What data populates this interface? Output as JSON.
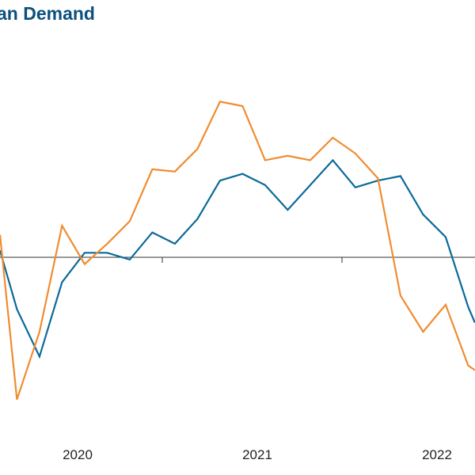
{
  "chart_data": {
    "type": "line",
    "title": "an Demand",
    "x_tick_labels": [
      "2020",
      "2021",
      "2022"
    ],
    "xlim": [
      0,
      21.05
    ],
    "ylim": [
      -0.6,
      0.6
    ],
    "zero_line": 0,
    "grid": false,
    "legend": "none",
    "series": [
      {
        "color": "#0b6a9a",
        "values": [
          {
            "x": 0.0,
            "y": 0.03
          },
          {
            "x": 0.75,
            "y": -0.23
          },
          {
            "x": 1.75,
            "y": -0.44
          },
          {
            "x": 2.75,
            "y": -0.11
          },
          {
            "x": 3.75,
            "y": 0.02
          },
          {
            "x": 4.75,
            "y": 0.02
          },
          {
            "x": 5.75,
            "y": -0.01
          },
          {
            "x": 6.75,
            "y": 0.11
          },
          {
            "x": 7.75,
            "y": 0.06
          },
          {
            "x": 8.75,
            "y": 0.17
          },
          {
            "x": 9.75,
            "y": 0.34
          },
          {
            "x": 10.75,
            "y": 0.37
          },
          {
            "x": 11.75,
            "y": 0.32
          },
          {
            "x": 12.75,
            "y": 0.21
          },
          {
            "x": 13.75,
            "y": 0.32
          },
          {
            "x": 14.75,
            "y": 0.43
          },
          {
            "x": 15.75,
            "y": 0.31
          },
          {
            "x": 16.75,
            "y": 0.34
          },
          {
            "x": 17.75,
            "y": 0.36
          },
          {
            "x": 18.75,
            "y": 0.19
          },
          {
            "x": 19.75,
            "y": 0.09
          },
          {
            "x": 20.75,
            "y": -0.22
          },
          {
            "x": 21.05,
            "y": -0.29
          }
        ]
      },
      {
        "color": "#f08c30",
        "values": [
          {
            "x": 0.0,
            "y": 0.1
          },
          {
            "x": 0.75,
            "y": -0.63
          },
          {
            "x": 1.75,
            "y": -0.33
          },
          {
            "x": 2.75,
            "y": 0.14
          },
          {
            "x": 3.75,
            "y": -0.03
          },
          {
            "x": 4.75,
            "y": 0.06
          },
          {
            "x": 5.75,
            "y": 0.16
          },
          {
            "x": 6.75,
            "y": 0.39
          },
          {
            "x": 7.75,
            "y": 0.38
          },
          {
            "x": 8.75,
            "y": 0.48
          },
          {
            "x": 9.75,
            "y": 0.69
          },
          {
            "x": 10.75,
            "y": 0.67
          },
          {
            "x": 11.75,
            "y": 0.43
          },
          {
            "x": 12.75,
            "y": 0.45
          },
          {
            "x": 13.75,
            "y": 0.43
          },
          {
            "x": 14.75,
            "y": 0.53
          },
          {
            "x": 15.75,
            "y": 0.46
          },
          {
            "x": 16.75,
            "y": 0.35
          },
          {
            "x": 17.75,
            "y": -0.17
          },
          {
            "x": 18.75,
            "y": -0.33
          },
          {
            "x": 19.75,
            "y": -0.21
          },
          {
            "x": 20.75,
            "y": -0.48
          },
          {
            "x": 21.05,
            "y": -0.5
          }
        ]
      }
    ]
  }
}
